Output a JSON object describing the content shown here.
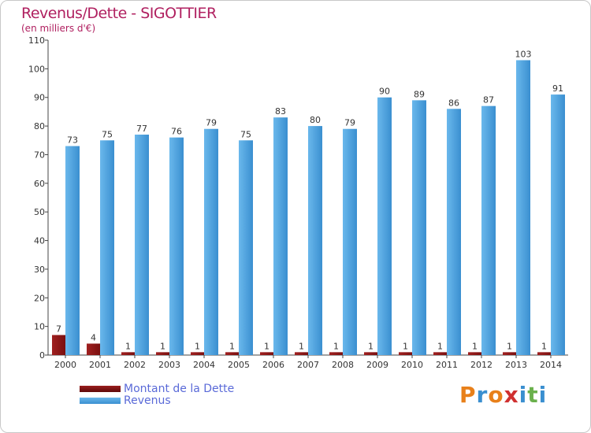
{
  "header": {
    "title": "Revenus/Dette - SIGOTTIER",
    "subtitle": "(en milliers d'€)"
  },
  "legend": {
    "debt_label": "Montant de la Dette",
    "revenue_label": "Revenus"
  },
  "brand": {
    "text": "Proxiti",
    "colors": [
      "#e8801a",
      "#3a8fd0",
      "#e8801a",
      "#d03030",
      "#3a8fd0",
      "#6ab04c",
      "#3a8fd0"
    ]
  },
  "colors": {
    "revenue": "#3a8fd0",
    "revenue_light": "#6ab8ec",
    "debt": "#7a1010",
    "title": "#b02060",
    "legend_text": "#5a6ad8"
  },
  "chart_data": {
    "type": "bar",
    "categories": [
      "2000",
      "2001",
      "2002",
      "2003",
      "2004",
      "2005",
      "2006",
      "2007",
      "2008",
      "2009",
      "2010",
      "2011",
      "2012",
      "2013",
      "2014"
    ],
    "series": [
      {
        "name": "Montant de la Dette",
        "values": [
          7,
          4,
          1,
          1,
          1,
          1,
          1,
          1,
          1,
          1,
          1,
          1,
          1,
          1,
          1
        ]
      },
      {
        "name": "Revenus",
        "values": [
          73,
          75,
          77,
          76,
          79,
          75,
          83,
          80,
          79,
          90,
          89,
          86,
          87,
          103,
          91
        ]
      }
    ],
    "ylim": [
      0,
      110
    ],
    "yticks": [
      0,
      10,
      20,
      30,
      40,
      50,
      60,
      70,
      80,
      90,
      100,
      110
    ],
    "grid": false,
    "legend_position": "bottom-left"
  }
}
